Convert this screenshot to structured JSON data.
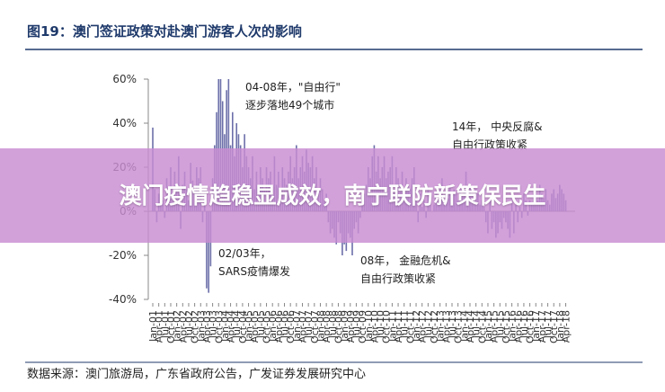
{
  "chart_data": {
    "type": "bar",
    "title": "图19：澳门签证政策对赴澳门游客人次的影响",
    "source": "数据来源：澳门旅游局，广东省政府公告，广发证券发展研究中心",
    "color": "#6c6fa9",
    "ylim": [
      -40,
      60
    ],
    "yticks": [
      {
        "value": 60,
        "label": "60%"
      },
      {
        "value": 40,
        "label": "40%"
      },
      {
        "value": 20,
        "label": "20%"
      },
      {
        "value": 0,
        "label": "0%"
      },
      {
        "value": -20,
        "label": "-20%"
      },
      {
        "value": -40,
        "label": "-40%"
      }
    ],
    "annotations": [
      [
        "04-08年，\"自由行\"",
        "逐步落地49个城市"
      ],
      [
        "14年， 中央反腐&",
        "自由行政策收紧"
      ],
      [
        "02/03年，",
        "SARS疫情爆发"
      ],
      [
        "08年， 金融危机&",
        "自由行政策收紧"
      ]
    ],
    "categories": [
      "Jan-01",
      null,
      null,
      "Apr-01",
      null,
      null,
      "Jul-01",
      null,
      null,
      "Oct-01",
      null,
      null,
      "Jan-02",
      null,
      null,
      "Apr-02",
      null,
      null,
      "Jul-02",
      null,
      null,
      "Oct-02",
      null,
      null,
      "Jan-03",
      null,
      null,
      "Apr-03",
      null,
      null,
      "Jul-03",
      null,
      null,
      "Oct-03",
      null,
      null,
      "Jan-04",
      null,
      null,
      "Apr-04",
      null,
      null,
      "Jul-04",
      null,
      null,
      "Oct-04",
      null,
      null,
      "Jan-05",
      null,
      null,
      "Apr-05",
      null,
      null,
      "Jul-05",
      null,
      null,
      "Oct-05",
      null,
      null,
      "Jan-06",
      null,
      null,
      "Apr-06",
      null,
      null,
      "Jul-06",
      null,
      null,
      "Oct-06",
      null,
      null,
      "Jan-07",
      null,
      null,
      "Apr-07",
      null,
      null,
      "Jul-07",
      null,
      null,
      "Oct-07",
      null,
      null,
      "Jan-08",
      null,
      null,
      "Apr-08",
      null,
      null,
      "Jul-08",
      null,
      null,
      "Oct-08",
      null,
      null,
      "Jan-09",
      null,
      null,
      "Apr-09",
      null,
      null,
      "Jul-09",
      null,
      null,
      "Oct-09",
      null,
      null,
      "Jan-10",
      null,
      null,
      "Apr-10",
      null,
      null,
      "Jul-10",
      null,
      null,
      "Oct-10",
      null,
      null,
      "Jan-11",
      null,
      null,
      "Apr-11",
      null,
      null,
      "Jul-11",
      null,
      null,
      "Oct-11",
      null,
      null,
      "Jan-12",
      null,
      null,
      "Apr-12",
      null,
      null,
      "Jul-12",
      null,
      null,
      "Oct-12",
      null,
      null,
      "Jan-13",
      null,
      null,
      "Apr-13",
      null,
      null,
      "Jul-13",
      null,
      null,
      "Oct-13",
      null,
      null,
      "Jan-14",
      null,
      null,
      "Apr-14",
      null,
      null,
      "Jul-14",
      null,
      null,
      "Oct-14",
      null,
      null,
      "Jan-15",
      null,
      null,
      "Apr-15",
      null,
      null,
      "Jul-15",
      null,
      null,
      "Oct-15",
      null,
      null,
      "Jan-16",
      null,
      null,
      "Apr-16",
      null,
      null,
      "Jul-16",
      null,
      null,
      "Oct-16",
      null,
      null,
      "Jan-17",
      null,
      null,
      "Apr-17",
      null,
      null,
      "Jul-17",
      null,
      null,
      "Oct-17",
      null,
      null,
      "Jan-18",
      null,
      null,
      "Apr-18"
    ],
    "values": [
      38,
      10,
      -5,
      8,
      12,
      5,
      -3,
      15,
      6,
      20,
      5,
      18,
      10,
      25,
      -8,
      12,
      18,
      10,
      5,
      22,
      14,
      10,
      20,
      15,
      20,
      -5,
      8,
      -35,
      -37,
      -25,
      15,
      30,
      45,
      60,
      60,
      50,
      35,
      55,
      60,
      30,
      45,
      25,
      40,
      35,
      30,
      20,
      35,
      25,
      20,
      15,
      25,
      10,
      18,
      12,
      20,
      15,
      10,
      20,
      15,
      18,
      10,
      25,
      12,
      18,
      10,
      20,
      15,
      12,
      18,
      25,
      15,
      20,
      30,
      15,
      20,
      25,
      18,
      28,
      22,
      20,
      25,
      15,
      20,
      10,
      15,
      10,
      5,
      8,
      -5,
      -10,
      -8,
      -12,
      -15,
      -5,
      -10,
      -20,
      -15,
      -18,
      -10,
      -12,
      -20,
      -8,
      -5,
      -10,
      -3,
      5,
      8,
      12,
      20,
      15,
      25,
      30,
      18,
      25,
      15,
      20,
      25,
      15,
      18,
      20,
      25,
      10,
      20,
      15,
      12,
      18,
      10,
      15,
      12,
      10,
      15,
      20,
      5,
      -5,
      8,
      2,
      5,
      -3,
      10,
      5,
      0,
      3,
      8,
      5,
      10,
      15,
      5,
      8,
      10,
      12,
      5,
      10,
      8,
      5,
      10,
      8,
      10,
      18,
      5,
      12,
      8,
      5,
      10,
      8,
      3,
      5,
      2,
      -5,
      -10,
      5,
      -8,
      -5,
      -12,
      -10,
      -5,
      -8,
      -3,
      -5,
      -8,
      -12,
      5,
      -10,
      3,
      -5,
      2,
      -3,
      8,
      5,
      -2,
      5,
      3,
      8,
      10,
      5,
      12,
      8,
      6,
      10,
      5,
      3,
      8,
      10,
      6,
      8,
      12,
      10,
      8,
      5
    ]
  },
  "overlay": "澳门疫情趋稳显成效，南宁联防新策保民生"
}
